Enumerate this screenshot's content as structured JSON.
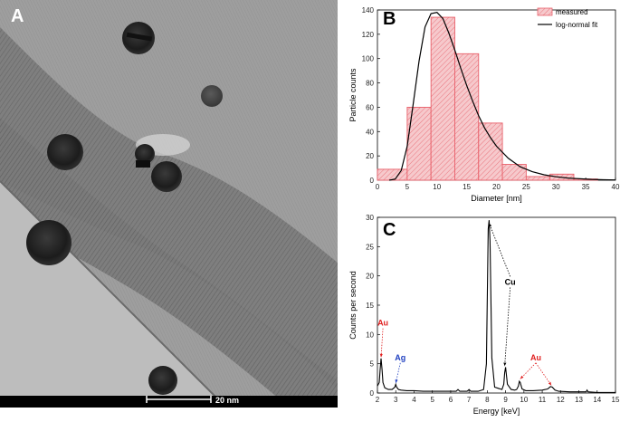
{
  "panel_a": {
    "label": "A",
    "scale_bar_label": "20 nm"
  },
  "chart_data": [
    {
      "panel": "B",
      "type": "bar",
      "xlabel": "Diameter [nm]",
      "ylabel": "Particle counts",
      "xlim": [
        0,
        40
      ],
      "ylim": [
        0,
        140
      ],
      "xticks": [
        0,
        5,
        10,
        15,
        20,
        25,
        30,
        35,
        40
      ],
      "yticks": [
        0,
        20,
        40,
        60,
        80,
        100,
        120,
        140
      ],
      "legend_position": "top-right",
      "bins": [
        {
          "start": 0,
          "end": 5,
          "value": 9
        },
        {
          "start": 5,
          "end": 9,
          "value": 60
        },
        {
          "start": 9,
          "end": 13,
          "value": 134
        },
        {
          "start": 13,
          "end": 17,
          "value": 104
        },
        {
          "start": 17,
          "end": 21,
          "value": 47
        },
        {
          "start": 21,
          "end": 25,
          "value": 13
        },
        {
          "start": 25,
          "end": 29,
          "value": 3
        },
        {
          "start": 29,
          "end": 33,
          "value": 5
        },
        {
          "start": 33,
          "end": 37,
          "value": 1
        }
      ],
      "series": [
        {
          "name": "measured",
          "kind": "bars",
          "color": "#e8606a"
        },
        {
          "name": "log-normal fit",
          "kind": "line",
          "color": "#000000",
          "x": [
            2,
            3,
            4,
            5,
            6,
            7,
            8,
            9,
            10,
            11,
            12,
            13,
            14,
            15,
            16,
            17,
            18,
            19,
            20,
            22,
            24,
            26,
            28,
            30,
            32,
            34,
            36,
            38,
            40
          ],
          "y": [
            0,
            1,
            8,
            28,
            62,
            98,
            126,
            137,
            138,
            133,
            121,
            107,
            92,
            78,
            65,
            53,
            43,
            35,
            28,
            18,
            11,
            7,
            4.5,
            2.8,
            1.8,
            1.2,
            0.7,
            0.4,
            0.2
          ]
        }
      ]
    },
    {
      "panel": "C",
      "type": "line",
      "xlabel": "Energy [keV]",
      "ylabel": "Counts per second",
      "xlim": [
        2,
        15
      ],
      "ylim": [
        0,
        30
      ],
      "xticks": [
        2,
        3,
        4,
        5,
        6,
        7,
        8,
        9,
        10,
        11,
        12,
        13,
        14,
        15
      ],
      "yticks": [
        0,
        5,
        10,
        15,
        20,
        25,
        30
      ],
      "series": [
        {
          "name": "",
          "color": "#000000",
          "x": [
            2.0,
            2.1,
            2.15,
            2.2,
            2.25,
            2.3,
            2.4,
            2.6,
            2.8,
            2.95,
            3.0,
            3.05,
            3.15,
            3.3,
            3.6,
            4.0,
            4.5,
            5.0,
            5.5,
            6.0,
            6.3,
            6.4,
            6.5,
            6.9,
            7.0,
            7.1,
            7.5,
            7.8,
            7.95,
            8.05,
            8.1,
            8.15,
            8.25,
            8.4,
            8.6,
            8.8,
            8.9,
            8.95,
            9.0,
            9.1,
            9.3,
            9.5,
            9.6,
            9.7,
            9.75,
            9.8,
            9.9,
            10.1,
            10.5,
            11.0,
            11.3,
            11.45,
            11.55,
            11.7,
            11.9,
            12.5,
            13.0,
            13.4,
            13.45,
            13.5,
            14.0,
            14.5,
            15.0
          ],
          "y": [
            1.2,
            1.8,
            4.0,
            5.9,
            4.0,
            1.8,
            0.9,
            0.6,
            0.6,
            1.0,
            1.5,
            1.0,
            0.6,
            0.5,
            0.4,
            0.4,
            0.3,
            0.3,
            0.3,
            0.3,
            0.3,
            0.6,
            0.3,
            0.3,
            0.6,
            0.3,
            0.3,
            0.6,
            5.0,
            28.0,
            29.5,
            26.0,
            6.0,
            1.0,
            0.8,
            0.6,
            1.5,
            3.5,
            4.4,
            1.5,
            0.6,
            0.5,
            0.6,
            1.2,
            2.0,
            1.8,
            0.7,
            0.4,
            0.4,
            0.5,
            0.7,
            1.1,
            1.0,
            0.5,
            0.3,
            0.2,
            0.2,
            0.2,
            0.5,
            0.2,
            0.1,
            0.1,
            0.1
          ]
        }
      ],
      "annotations": [
        {
          "text": "Cu",
          "color": "#000000",
          "text_at": [
            9.25,
            18.5
          ],
          "targets": [
            [
              8.1,
              29.0
            ],
            [
              8.95,
              4.6
            ]
          ]
        },
        {
          "text": "Au",
          "color": "#e02020",
          "text_at": [
            2.3,
            11.5
          ],
          "targets": [
            [
              2.2,
              6.1
            ]
          ]
        },
        {
          "text": "Ag",
          "color": "#2040c0",
          "text_at": [
            3.25,
            5.6
          ],
          "targets": [
            [
              3.0,
              1.7
            ]
          ]
        },
        {
          "text": "Au",
          "color": "#e02020",
          "text_at": [
            10.65,
            5.6
          ],
          "targets": [
            [
              9.8,
              2.4
            ],
            [
              11.5,
              1.3
            ]
          ]
        }
      ]
    }
  ],
  "colors": {
    "bar_fill": "#f6c9cc",
    "bar_stroke": "#e8606a",
    "fit_line": "#000000",
    "spectrum_line": "#000000"
  }
}
